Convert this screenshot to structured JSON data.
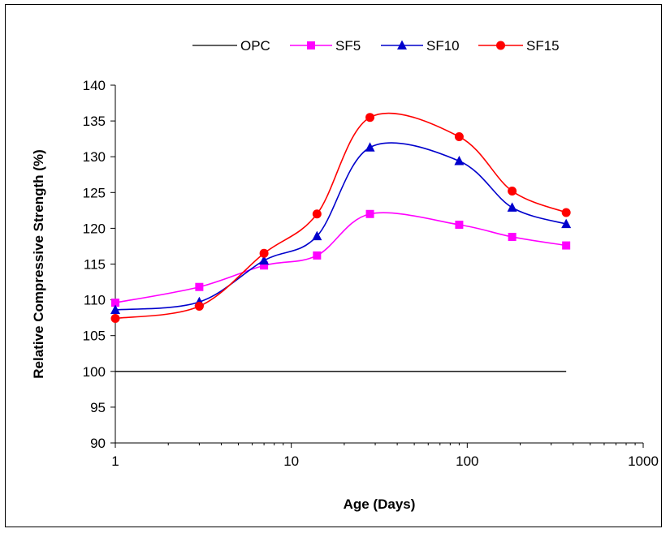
{
  "chart_data": {
    "type": "line",
    "title": "",
    "xlabel": "Age (Days)",
    "ylabel": "Relative Compressive Strength (%)",
    "xscale": "log",
    "xlim": [
      1,
      1000
    ],
    "ylim": [
      90,
      140
    ],
    "xticks": [
      1,
      10,
      100,
      1000
    ],
    "xtick_labels": [
      "1",
      "10",
      "100",
      "1000"
    ],
    "yticks": [
      90,
      95,
      100,
      105,
      110,
      115,
      120,
      125,
      130,
      135,
      140
    ],
    "ytick_labels": [
      "90",
      "95",
      "100",
      "105",
      "110",
      "115",
      "120",
      "125",
      "130",
      "135",
      "140"
    ],
    "grid": false,
    "legend_position": "top",
    "x": [
      1,
      3,
      7,
      14,
      28,
      90,
      180,
      365
    ],
    "series": [
      {
        "name": "OPC",
        "values": [
          100,
          100,
          100,
          100,
          100,
          100,
          100,
          100
        ],
        "color": "#000000",
        "marker": "none"
      },
      {
        "name": "SF5",
        "values": [
          109.6,
          111.8,
          114.8,
          116.2,
          122.0,
          120.5,
          118.8,
          117.6
        ],
        "color": "#ff00ff",
        "marker": "square"
      },
      {
        "name": "SF10",
        "values": [
          108.6,
          109.7,
          115.5,
          118.9,
          131.3,
          129.4,
          122.9,
          120.6
        ],
        "color": "#0000cc",
        "marker": "triangle"
      },
      {
        "name": "SF15",
        "values": [
          107.4,
          109.1,
          116.5,
          122.0,
          135.5,
          132.8,
          125.2,
          122.2
        ],
        "color": "#ff0000",
        "marker": "circle"
      }
    ]
  }
}
